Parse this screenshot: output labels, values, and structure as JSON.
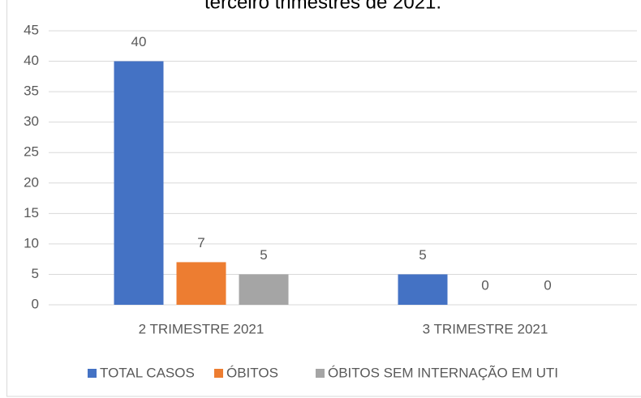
{
  "chart_data": {
    "type": "bar",
    "title": "terceiro trimestres de 2021.",
    "categories": [
      "2 TRIMESTRE 2021",
      "3 TRIMESTRE 2021"
    ],
    "series": [
      {
        "name": "TOTAL CASOS",
        "color": "#4472c4",
        "values": [
          40,
          5
        ]
      },
      {
        "name": "ÓBITOS",
        "color": "#ed7d31",
        "values": [
          7,
          0
        ]
      },
      {
        "name": "ÓBITOS SEM INTERNAÇÃO EM UTI",
        "color": "#a5a5a5",
        "values": [
          5,
          0
        ]
      }
    ],
    "ylim": [
      0,
      45
    ],
    "yticks": [
      0,
      5,
      10,
      15,
      20,
      25,
      30,
      35,
      40,
      45
    ],
    "grid": true,
    "legend": "bottom"
  }
}
